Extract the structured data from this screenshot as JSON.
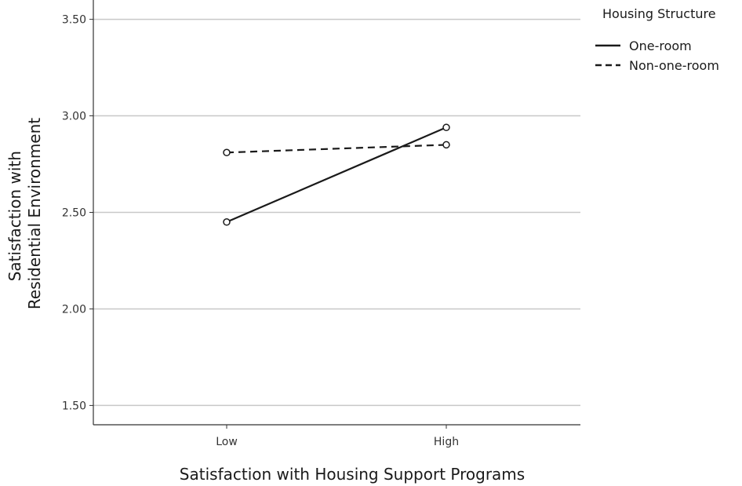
{
  "chart_data": {
    "type": "line",
    "title": "",
    "xlabel": "Satisfaction with Housing Support Programs",
    "ylabel_lines": [
      "Satisfaction with",
      "Residential Environment"
    ],
    "categories": [
      "Low",
      "High"
    ],
    "ylim": [
      1.4,
      3.6
    ],
    "yticks": [
      1.5,
      2.0,
      2.5,
      3.0,
      3.5
    ],
    "ytick_labels": [
      "1.50",
      "2.00",
      "2.50",
      "3.00",
      "3.50"
    ],
    "grid": "horizontal",
    "legend": {
      "title": "Housing Structure",
      "placement": "top-right-outside"
    },
    "series": [
      {
        "name": "One-room",
        "style": "solid",
        "values": [
          2.45,
          2.94
        ]
      },
      {
        "name": "Non-one-room",
        "style": "dashed",
        "values": [
          2.81,
          2.85
        ]
      }
    ],
    "colors": {
      "line": "#1a1a1a",
      "grid": "#c8c8c8",
      "axis": "#333333"
    }
  }
}
